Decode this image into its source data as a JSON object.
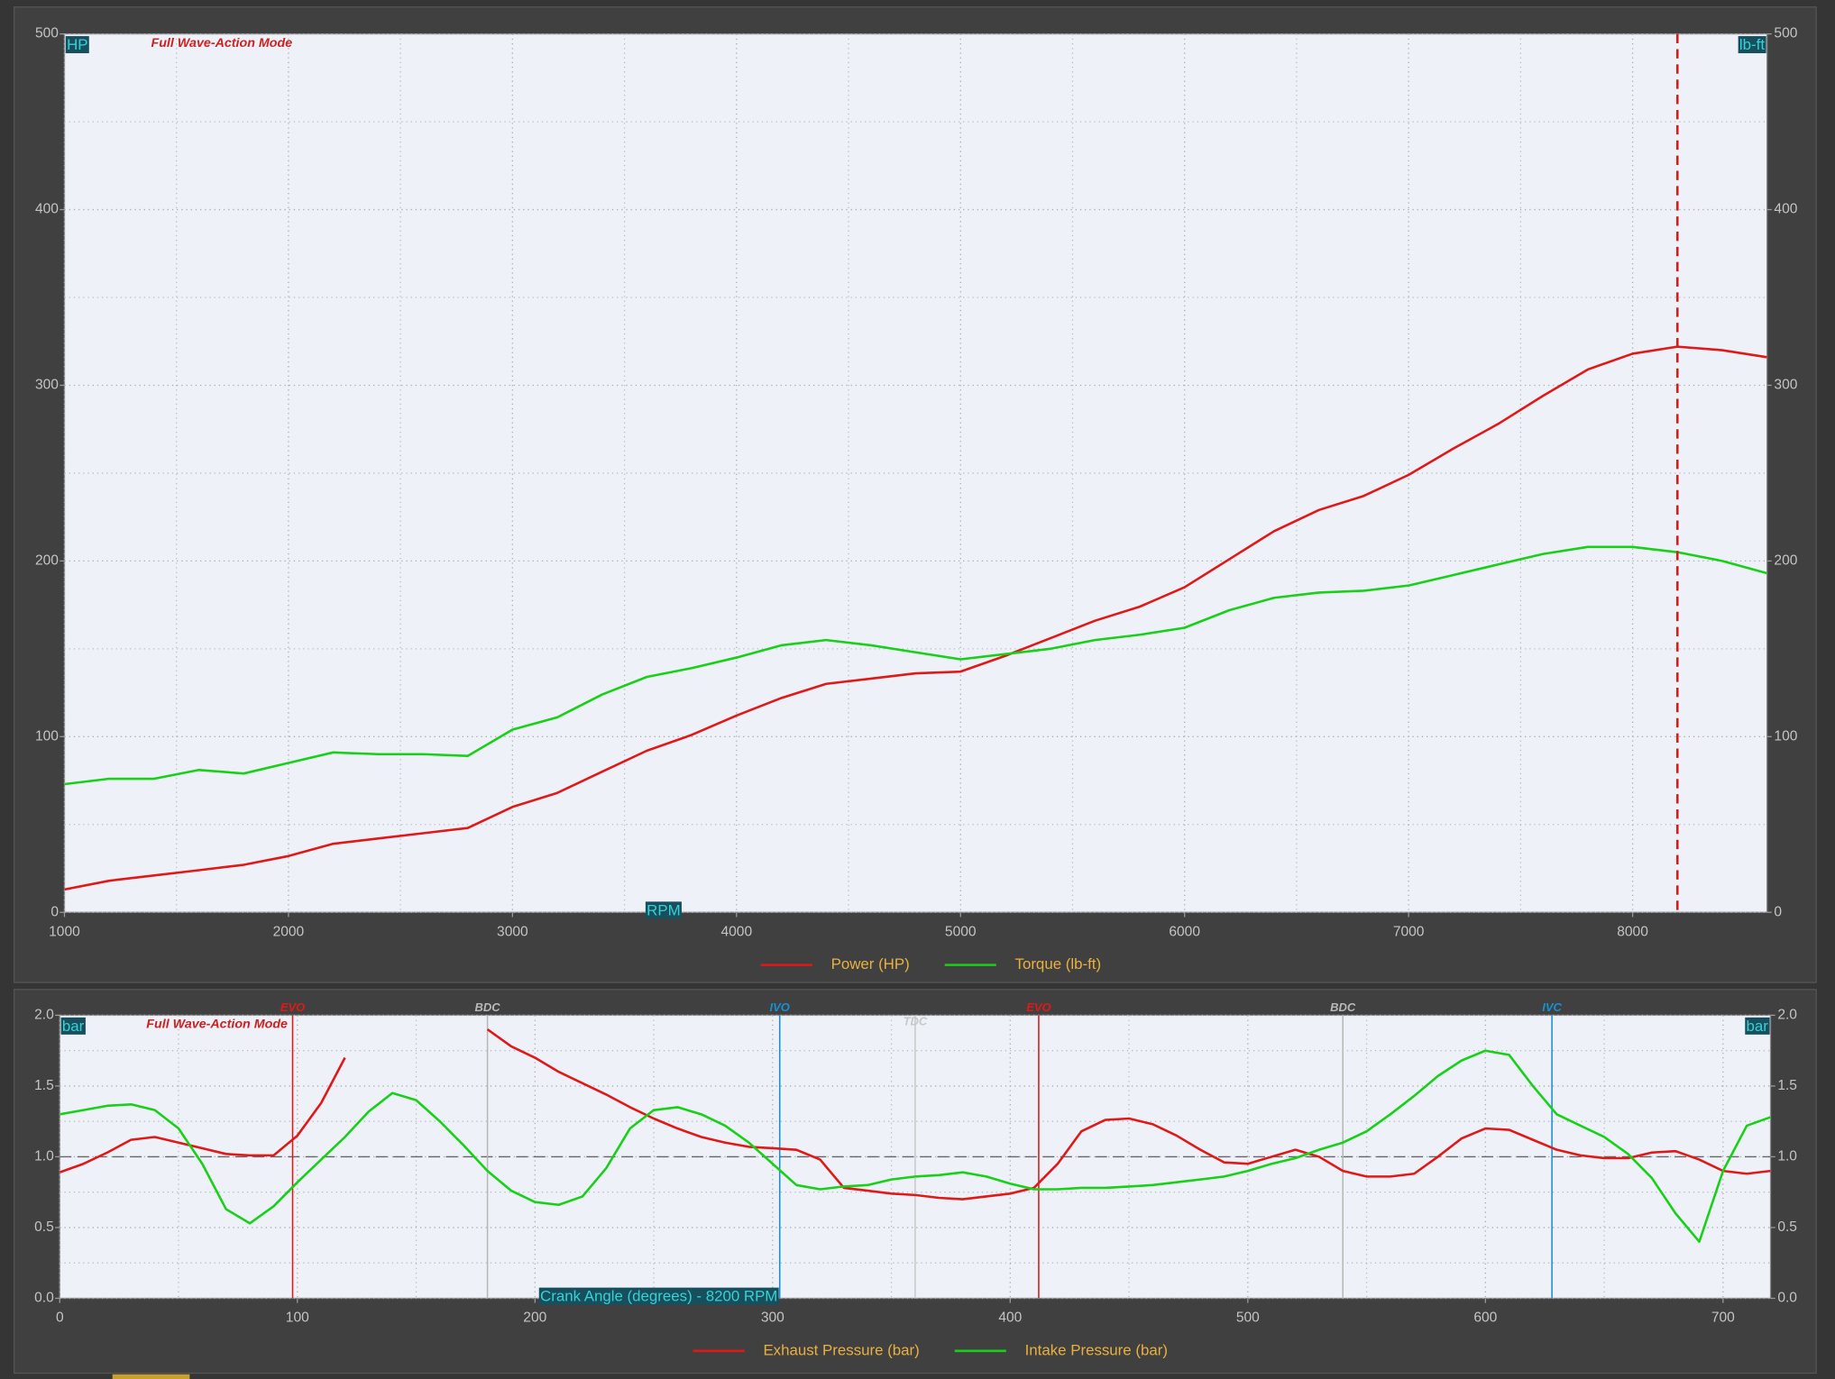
{
  "chart_data": [
    {
      "type": "line",
      "annotation": "Full Wave-Action Mode",
      "ylabel": "HP",
      "y2label": "lb-ft",
      "xlabel": "RPM",
      "x": [
        1000,
        1200,
        1400,
        1600,
        1800,
        2000,
        2200,
        2400,
        2600,
        2800,
        3000,
        3200,
        3400,
        3600,
        3800,
        4000,
        4200,
        4400,
        4600,
        4800,
        5000,
        5200,
        5400,
        5600,
        5800,
        6000,
        6200,
        6400,
        6600,
        6800,
        7000,
        7200,
        7400,
        7600,
        7800,
        8000,
        8200,
        8400,
        8600
      ],
      "series": [
        {
          "name": "Power (HP)",
          "color": "#e01818",
          "values": [
            13,
            18,
            21,
            24,
            27,
            32,
            39,
            42,
            45,
            48,
            60,
            68,
            80,
            92,
            101,
            112,
            122,
            130,
            133,
            136,
            137,
            146,
            156,
            166,
            174,
            185,
            201,
            217,
            229,
            237,
            249,
            264,
            278,
            294,
            309,
            318,
            322,
            320,
            316
          ]
        },
        {
          "name": "Torque (lb-ft)",
          "color": "#18d018",
          "axis": "y2",
          "values": [
            73,
            76,
            76,
            81,
            79,
            85,
            91,
            90,
            90,
            89,
            104,
            111,
            124,
            134,
            139,
            145,
            152,
            155,
            152,
            148,
            144,
            147,
            150,
            155,
            158,
            162,
            172,
            179,
            182,
            183,
            186,
            192,
            198,
            204,
            208,
            208,
            205,
            200,
            193
          ]
        }
      ],
      "xlim": [
        1000,
        8600
      ],
      "xticks": [
        1000,
        2000,
        3000,
        4000,
        5000,
        6000,
        7000,
        8000
      ],
      "ylim": [
        0,
        500
      ],
      "yticks": [
        0,
        100,
        200,
        300,
        400,
        500
      ],
      "y2lim": [
        0,
        500
      ],
      "y2ticks": [
        0,
        100,
        200,
        300,
        400,
        500
      ],
      "cursor_x": 8200,
      "cursor_color": "#e01818",
      "grid": true
    },
    {
      "type": "line",
      "annotation": "Full Wave-Action Mode",
      "ylabel": "bar",
      "y2label": "bar",
      "xlabel": "Crank Angle (degrees) - 8200 RPM",
      "x": [
        0,
        10,
        20,
        30,
        40,
        50,
        60,
        70,
        80,
        90,
        100,
        110,
        120,
        130,
        140,
        150,
        160,
        170,
        180,
        190,
        200,
        210,
        220,
        230,
        240,
        250,
        260,
        270,
        280,
        290,
        300,
        310,
        320,
        330,
        340,
        350,
        360,
        370,
        380,
        390,
        400,
        410,
        420,
        430,
        440,
        450,
        460,
        470,
        480,
        490,
        500,
        510,
        520,
        530,
        540,
        550,
        560,
        570,
        580,
        590,
        600,
        610,
        620,
        630,
        640,
        650,
        660,
        670,
        680,
        690,
        700,
        710,
        720
      ],
      "series": [
        {
          "name": "Exhaust Pressure (bar)",
          "color": "#e01818",
          "values": [
            0.89,
            0.95,
            1.03,
            1.12,
            1.14,
            1.1,
            1.06,
            1.02,
            1.01,
            1.01,
            1.15,
            1.38,
            1.7,
            null,
            null,
            null,
            null,
            null,
            1.9,
            1.78,
            1.7,
            1.6,
            1.52,
            1.44,
            1.35,
            1.27,
            1.2,
            1.14,
            1.1,
            1.07,
            1.06,
            1.05,
            0.98,
            0.78,
            0.76,
            0.74,
            0.73,
            0.71,
            0.7,
            0.72,
            0.74,
            0.78,
            0.95,
            1.18,
            1.26,
            1.27,
            1.23,
            1.15,
            1.05,
            0.96,
            0.95,
            1.0,
            1.05,
            1.0,
            0.9,
            0.86,
            0.86,
            0.88,
            1.0,
            1.13,
            1.2,
            1.19,
            1.12,
            1.05,
            1.01,
            0.99,
            0.99,
            1.03,
            1.04,
            0.98,
            0.9,
            0.88,
            0.9
          ]
        },
        {
          "name": "Intake Pressure (bar)",
          "color": "#18d018",
          "values": [
            1.3,
            1.33,
            1.36,
            1.37,
            1.33,
            1.2,
            0.95,
            0.63,
            0.53,
            0.65,
            0.82,
            0.98,
            1.14,
            1.32,
            1.45,
            1.4,
            1.25,
            1.08,
            0.9,
            0.76,
            0.68,
            0.66,
            0.72,
            0.92,
            1.2,
            1.33,
            1.35,
            1.3,
            1.22,
            1.1,
            0.95,
            0.8,
            0.77,
            0.79,
            0.8,
            0.84,
            0.86,
            0.87,
            0.89,
            0.86,
            0.81,
            0.77,
            0.77,
            0.78,
            0.78,
            0.79,
            0.8,
            0.82,
            0.84,
            0.86,
            0.9,
            0.95,
            0.99,
            1.05,
            1.1,
            1.18,
            1.3,
            1.43,
            1.57,
            1.68,
            1.75,
            1.72,
            1.5,
            1.3,
            1.22,
            1.14,
            1.02,
            0.85,
            0.6,
            0.4,
            0.9,
            1.22,
            1.28
          ]
        }
      ],
      "xlim": [
        0,
        720
      ],
      "xticks": [
        0,
        100,
        200,
        300,
        400,
        500,
        600,
        700
      ],
      "ylim": [
        0,
        2
      ],
      "yticks": [
        {
          "value": 0,
          "label": "0.0"
        },
        0.5,
        {
          "value": 1,
          "label": "1.0"
        },
        1.5,
        {
          "value": 2,
          "label": "2.0"
        }
      ],
      "y2lim": [
        0,
        2
      ],
      "y2ticks": [
        {
          "value": 0,
          "label": "0.0"
        },
        0.5,
        {
          "value": 1,
          "label": "1.0"
        },
        1.5,
        {
          "value": 2,
          "label": "2.0"
        }
      ],
      "reference_y": 1,
      "events": [
        {
          "label": "EVO",
          "x": 98,
          "color": "#e01818"
        },
        {
          "label": "BDC",
          "x": 180,
          "color": "#b8b8b8"
        },
        {
          "label": "IVO",
          "x": 303,
          "color": "#1890d0"
        },
        {
          "label": "TDC",
          "x": 360,
          "color": "#c8c8c8"
        },
        {
          "label": "EVO",
          "x": 412,
          "color": "#e01818"
        },
        {
          "label": "BDC",
          "x": 540,
          "color": "#b8b8b8"
        },
        {
          "label": "IVC",
          "x": 628,
          "color": "#1890d0"
        }
      ],
      "grid": true
    }
  ]
}
